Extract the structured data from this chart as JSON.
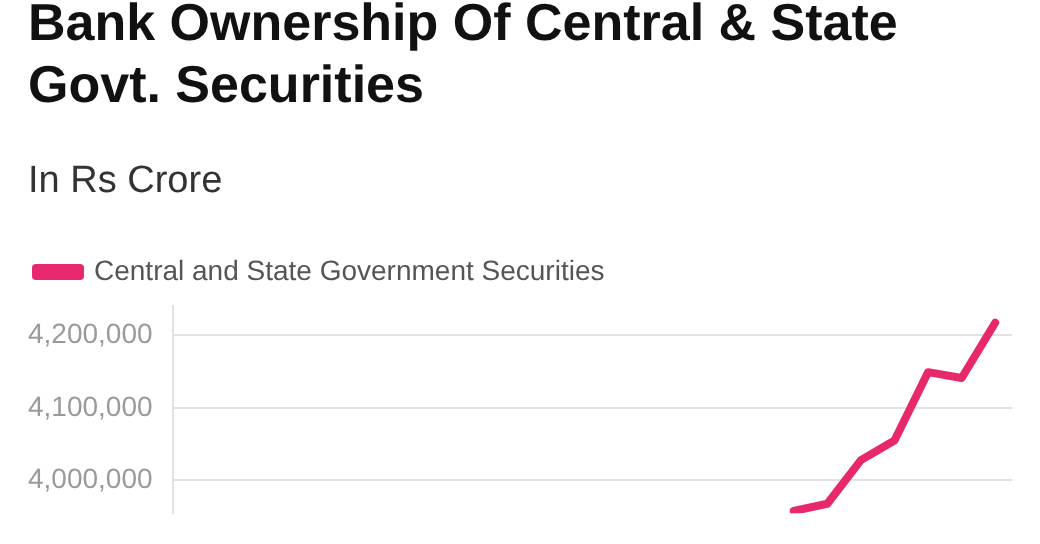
{
  "chart_data": {
    "type": "line",
    "title": "Bank Ownership Of Central & State Govt. Securities",
    "subtitle": "In Rs Crore",
    "categories": [
      null,
      null,
      null,
      null,
      null,
      null,
      null,
      null,
      null,
      null,
      null,
      null,
      null,
      null,
      null,
      null,
      null,
      null,
      null,
      null,
      null,
      null,
      null,
      null,
      null
    ],
    "series": [
      {
        "name": "Central and State Government Securities",
        "color": "#e8286c",
        "values": [
          null,
          null,
          null,
          null,
          null,
          null,
          null,
          null,
          null,
          null,
          null,
          null,
          null,
          null,
          null,
          null,
          null,
          null,
          3958000,
          3968000,
          4028000,
          4055000,
          4149000,
          4141000,
          4217000
        ]
      }
    ],
    "ylim": [
      3955000,
      4240000
    ],
    "yticks": [
      {
        "value": 4000000,
        "label": "4,000,000"
      },
      {
        "value": 4100000,
        "label": "4,100,000"
      },
      {
        "value": 4200000,
        "label": "4,200,000"
      }
    ],
    "grid": "y",
    "legend": "top left",
    "marker": "none",
    "tick_labels": "y"
  }
}
